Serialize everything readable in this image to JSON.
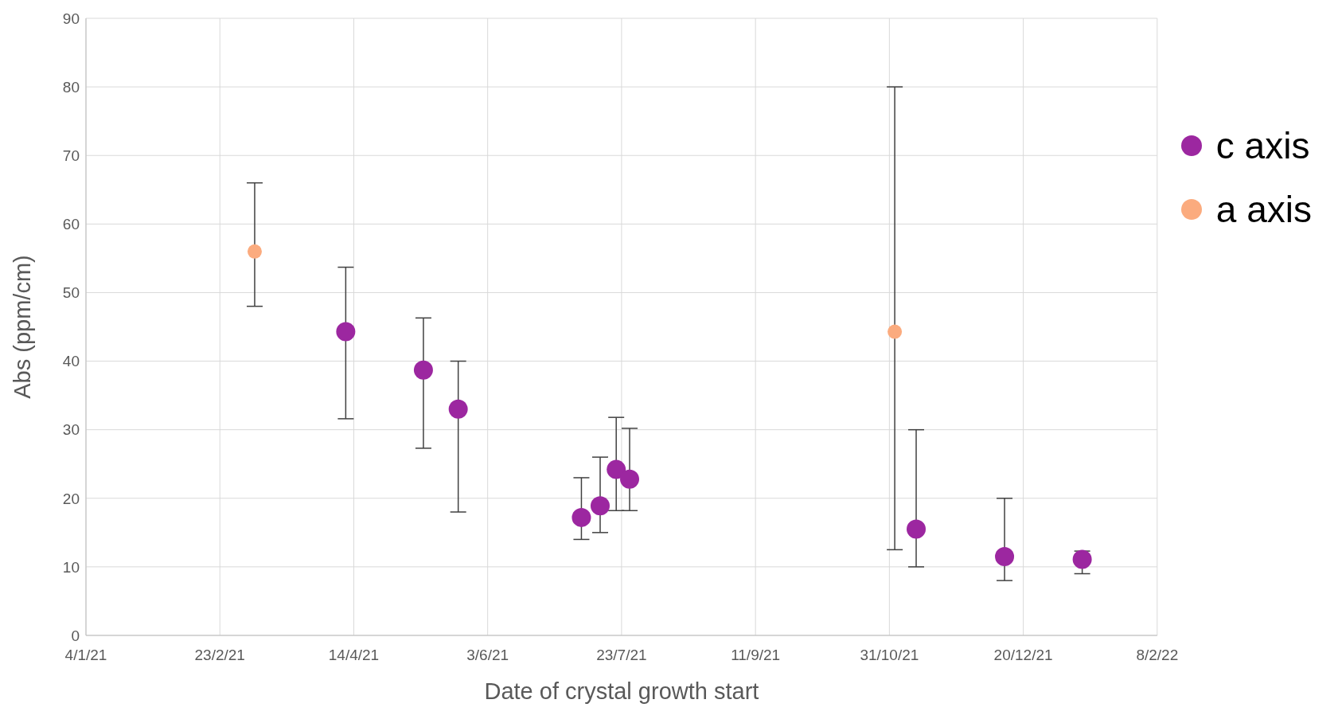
{
  "chart_data": {
    "type": "scatter",
    "xlabel": "Date of crystal growth start",
    "ylabel": "Abs (ppm/cm)",
    "xlim": [
      "2021-01-04",
      "2022-02-08"
    ],
    "xticks": [
      {
        "value": "2021-01-04",
        "label": "4/1/21"
      },
      {
        "value": "2021-02-23",
        "label": "23/2/21"
      },
      {
        "value": "2021-04-14",
        "label": "14/4/21"
      },
      {
        "value": "2021-06-03",
        "label": "3/6/21"
      },
      {
        "value": "2021-07-23",
        "label": "23/7/21"
      },
      {
        "value": "2021-09-11",
        "label": "11/9/21"
      },
      {
        "value": "2021-10-31",
        "label": "31/10/21"
      },
      {
        "value": "2021-12-20",
        "label": "20/12/21"
      },
      {
        "value": "2022-02-08",
        "label": "8/2/22"
      }
    ],
    "ylim": [
      0,
      90
    ],
    "yticks": [
      0,
      10,
      20,
      30,
      40,
      50,
      60,
      70,
      80,
      90
    ],
    "grid": true,
    "legend": "right",
    "marker": "circle",
    "series": [
      {
        "name": "c axis",
        "color": "#9c27a0",
        "x": [
          "2021-04-11",
          "2021-05-10",
          "2021-05-23",
          "2021-07-08",
          "2021-07-15",
          "2021-07-21",
          "2021-07-26",
          "2021-11-10",
          "2021-12-13",
          "2022-01-11"
        ],
        "values": [
          44.3,
          38.7,
          33,
          17.2,
          18.9,
          24.2,
          22.8,
          15.5,
          11.5,
          11.1
        ],
        "errors": [
          [
            31.6,
            53.7
          ],
          [
            27.3,
            46.3
          ],
          [
            18,
            40
          ],
          [
            14,
            23
          ],
          [
            15,
            26
          ],
          [
            18.2,
            31.8
          ],
          [
            18.2,
            30.2
          ],
          [
            10,
            30
          ],
          [
            8,
            20
          ],
          [
            9,
            12.3
          ]
        ]
      },
      {
        "name": "a axis",
        "color": "#fbab7e",
        "x": [
          "2021-03-08",
          "2021-11-02"
        ],
        "values": [
          56,
          44.3
        ],
        "errors": [
          [
            48,
            66
          ],
          [
            12.5,
            80
          ]
        ]
      }
    ]
  }
}
